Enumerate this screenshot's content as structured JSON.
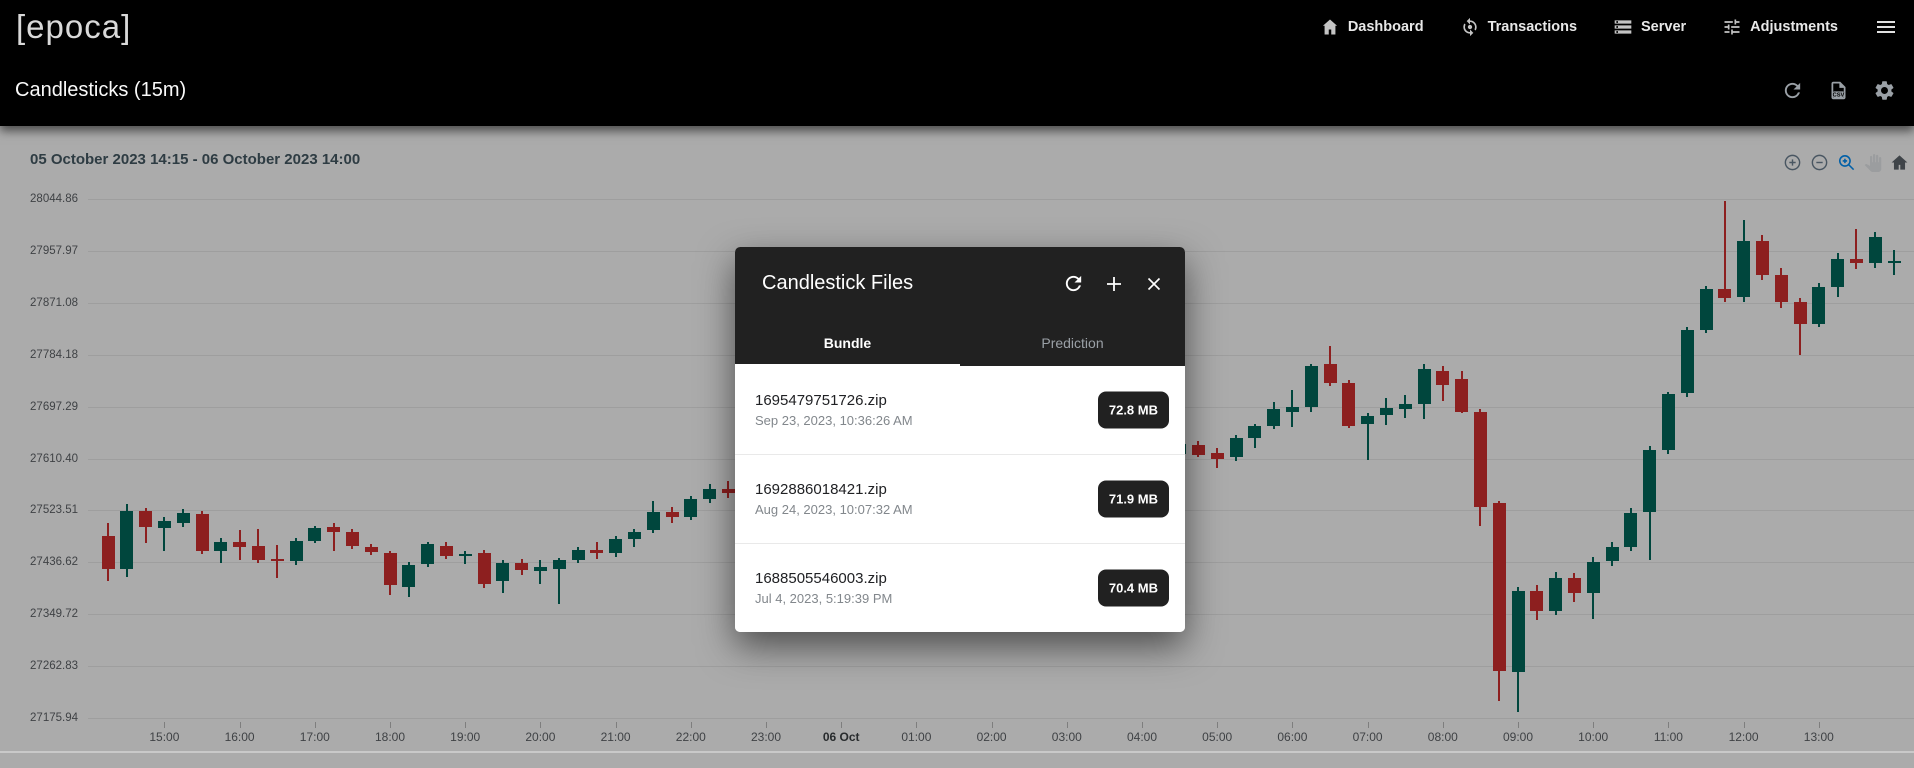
{
  "app": {
    "logo": "[epoca]"
  },
  "nav": {
    "items": [
      {
        "label": "Dashboard",
        "icon": "home-icon"
      },
      {
        "label": "Transactions",
        "icon": "transactions-icon"
      },
      {
        "label": "Server",
        "icon": "server-icon"
      },
      {
        "label": "Adjustments",
        "icon": "adjustments-icon"
      }
    ]
  },
  "subheader": {
    "title": "Candlesticks (15m)",
    "actions": [
      "refresh-icon",
      "csv-file-icon",
      "settings-icon"
    ]
  },
  "chart": {
    "range_label": "05 October 2023 14:15 - 06 October 2023 14:00",
    "toolbar": [
      "zoom-in-icon",
      "zoom-out-icon",
      "zoom-selection-icon",
      "pan-icon",
      "reset-zoom-icon"
    ],
    "active_tool": "zoom-selection"
  },
  "chart_data": {
    "type": "candlestick",
    "title": "Candlesticks (15m)",
    "interval": "15m",
    "x_range": "05 October 2023 14:15 - 06 October 2023 14:00",
    "up_color": "#00695C",
    "down_color": "#D32F2F",
    "grid": "horizontal-only",
    "y_ticks": [
      28044.86,
      27957.97,
      27871.08,
      27784.18,
      27697.29,
      27610.4,
      27523.51,
      27436.62,
      27349.72,
      27262.83,
      27175.94
    ],
    "x_ticks": [
      {
        "label": "15:00",
        "n": 3
      },
      {
        "label": "16:00",
        "n": 7
      },
      {
        "label": "17:00",
        "n": 11
      },
      {
        "label": "18:00",
        "n": 15
      },
      {
        "label": "19:00",
        "n": 19
      },
      {
        "label": "20:00",
        "n": 23
      },
      {
        "label": "21:00",
        "n": 27
      },
      {
        "label": "22:00",
        "n": 31
      },
      {
        "label": "23:00",
        "n": 35
      },
      {
        "label": "06 Oct",
        "n": 39,
        "bold": true
      },
      {
        "label": "01:00",
        "n": 43
      },
      {
        "label": "02:00",
        "n": 47
      },
      {
        "label": "03:00",
        "n": 51
      },
      {
        "label": "04:00",
        "n": 55
      },
      {
        "label": "05:00",
        "n": 59
      },
      {
        "label": "06:00",
        "n": 63
      },
      {
        "label": "07:00",
        "n": 67
      },
      {
        "label": "08:00",
        "n": 71
      },
      {
        "label": "09:00",
        "n": 75
      },
      {
        "label": "10:00",
        "n": 79
      },
      {
        "label": "11:00",
        "n": 83
      },
      {
        "label": "12:00",
        "n": 87
      },
      {
        "label": "13:00",
        "n": 91
      }
    ],
    "candles": [
      [
        27480,
        27503,
        27405,
        27425
      ],
      [
        27425,
        27535,
        27412,
        27523
      ],
      [
        27522,
        27528,
        27468,
        27495
      ],
      [
        27494,
        27512,
        27455,
        27506
      ],
      [
        27502,
        27526,
        27496,
        27519
      ],
      [
        27518,
        27522,
        27450,
        27455
      ],
      [
        27455,
        27478,
        27435,
        27470
      ],
      [
        27470,
        27490,
        27440,
        27463
      ],
      [
        27464,
        27492,
        27435,
        27440
      ],
      [
        27443,
        27465,
        27410,
        27441
      ],
      [
        27438,
        27478,
        27432,
        27473
      ],
      [
        27473,
        27498,
        27468,
        27494
      ],
      [
        27496,
        27502,
        27456,
        27488
      ],
      [
        27487,
        27492,
        27458,
        27464
      ],
      [
        27462,
        27468,
        27448,
        27453
      ],
      [
        27453,
        27456,
        27381,
        27398
      ],
      [
        27395,
        27438,
        27378,
        27433
      ],
      [
        27433,
        27470,
        27428,
        27467
      ],
      [
        27464,
        27470,
        27442,
        27447
      ],
      [
        27447,
        27455,
        27433,
        27450
      ],
      [
        27453,
        27458,
        27393,
        27400
      ],
      [
        27406,
        27440,
        27385,
        27436
      ],
      [
        27436,
        27442,
        27416,
        27424
      ],
      [
        27422,
        27440,
        27400,
        27428
      ],
      [
        27426,
        27444,
        27366,
        27440
      ],
      [
        27440,
        27462,
        27436,
        27458
      ],
      [
        27458,
        27470,
        27442,
        27452
      ],
      [
        27452,
        27480,
        27446,
        27475
      ],
      [
        27475,
        27492,
        27462,
        27488
      ],
      [
        27490,
        27540,
        27486,
        27521
      ],
      [
        27521,
        27530,
        27503,
        27512
      ],
      [
        27512,
        27548,
        27508,
        27542
      ],
      [
        27542,
        27568,
        27535,
        27560
      ],
      [
        27560,
        27572,
        27544,
        27552
      ],
      [
        27552,
        27575,
        27548,
        27568
      ],
      [
        27568,
        27574,
        27550,
        27556
      ],
      [
        27556,
        27580,
        27552,
        27574
      ],
      [
        27574,
        27578,
        27558,
        27563
      ],
      [
        27563,
        27585,
        27559,
        27580
      ],
      [
        27580,
        27586,
        27562,
        27570
      ],
      [
        27570,
        27592,
        27566,
        27586
      ],
      [
        27586,
        27590,
        27568,
        27574
      ],
      [
        27574,
        27596,
        27570,
        27590
      ],
      [
        27590,
        27595,
        27572,
        27578
      ],
      [
        27578,
        27600,
        27574,
        27594
      ],
      [
        27594,
        27600,
        27576,
        27582
      ],
      [
        27582,
        27604,
        27578,
        27598
      ],
      [
        27598,
        27604,
        27580,
        27586
      ],
      [
        27586,
        27608,
        27582,
        27602
      ],
      [
        27602,
        27608,
        27584,
        27590
      ],
      [
        27590,
        27612,
        27586,
        27606
      ],
      [
        27606,
        27612,
        27588,
        27594
      ],
      [
        27594,
        27616,
        27590,
        27610
      ],
      [
        27610,
        27616,
        27592,
        27598
      ],
      [
        27598,
        27620,
        27594,
        27614
      ],
      [
        27614,
        27620,
        27596,
        27602
      ],
      [
        27602,
        27624,
        27598,
        27618
      ],
      [
        27618,
        27638,
        27614,
        27634
      ],
      [
        27633,
        27640,
        27612,
        27617
      ],
      [
        27619,
        27628,
        27594,
        27609
      ],
      [
        27612,
        27650,
        27606,
        27645
      ],
      [
        27645,
        27668,
        27628,
        27665
      ],
      [
        27664,
        27705,
        27660,
        27694
      ],
      [
        27688,
        27725,
        27663,
        27696
      ],
      [
        27696,
        27768,
        27688,
        27765
      ],
      [
        27768,
        27799,
        27732,
        27736
      ],
      [
        27737,
        27742,
        27661,
        27664
      ],
      [
        27668,
        27686,
        27608,
        27682
      ],
      [
        27684,
        27712,
        27667,
        27695
      ],
      [
        27694,
        27716,
        27678,
        27701
      ],
      [
        27701,
        27769,
        27676,
        27760
      ],
      [
        27757,
        27766,
        27707,
        27734
      ],
      [
        27743,
        27757,
        27687,
        27689
      ],
      [
        27688,
        27694,
        27497,
        27530
      ],
      [
        27536,
        27540,
        27205,
        27255
      ],
      [
        27253,
        27395,
        27186,
        27388
      ],
      [
        27388,
        27398,
        27340,
        27355
      ],
      [
        27355,
        27420,
        27348,
        27410
      ],
      [
        27410,
        27418,
        27370,
        27385
      ],
      [
        27385,
        27445,
        27342,
        27438
      ],
      [
        27438,
        27470,
        27430,
        27462
      ],
      [
        27462,
        27528,
        27455,
        27520
      ],
      [
        27520,
        27632,
        27440,
        27625
      ],
      [
        27625,
        27722,
        27618,
        27718
      ],
      [
        27720,
        27830,
        27714,
        27826
      ],
      [
        27826,
        27900,
        27820,
        27895
      ],
      [
        27895,
        28041,
        27872,
        27880
      ],
      [
        27880,
        28010,
        27872,
        27975
      ],
      [
        27975,
        27985,
        27910,
        27918
      ],
      [
        27918,
        27930,
        27862,
        27872
      ],
      [
        27872,
        27880,
        27784,
        27835
      ],
      [
        27835,
        27905,
        27830,
        27898
      ],
      [
        27898,
        27955,
        27880,
        27945
      ],
      [
        27945,
        27995,
        27928,
        27938
      ],
      [
        27938,
        27990,
        27930,
        27982
      ],
      [
        27938,
        27960,
        27918,
        27941
      ]
    ]
  },
  "modal": {
    "title": "Candlestick Files",
    "actions": [
      "refresh-icon",
      "add-icon",
      "close-icon"
    ],
    "tabs": [
      {
        "label": "Bundle",
        "active": true
      },
      {
        "label": "Prediction",
        "active": false
      }
    ],
    "files": [
      {
        "name": "1695479751726.zip",
        "date": "Sep 23, 2023, 10:36:26 AM",
        "size": "72.8 MB"
      },
      {
        "name": "1692886018421.zip",
        "date": "Aug 24, 2023, 10:07:32 AM",
        "size": "71.9 MB"
      },
      {
        "name": "1688505546003.zip",
        "date": "Jul 4, 2023, 5:19:39 PM",
        "size": "70.4 MB"
      }
    ]
  },
  "colors": {
    "candle_up": "#00695C",
    "candle_down": "#D32F2F",
    "accent_blue": "#008FFB",
    "modal_dark": "#212121"
  }
}
